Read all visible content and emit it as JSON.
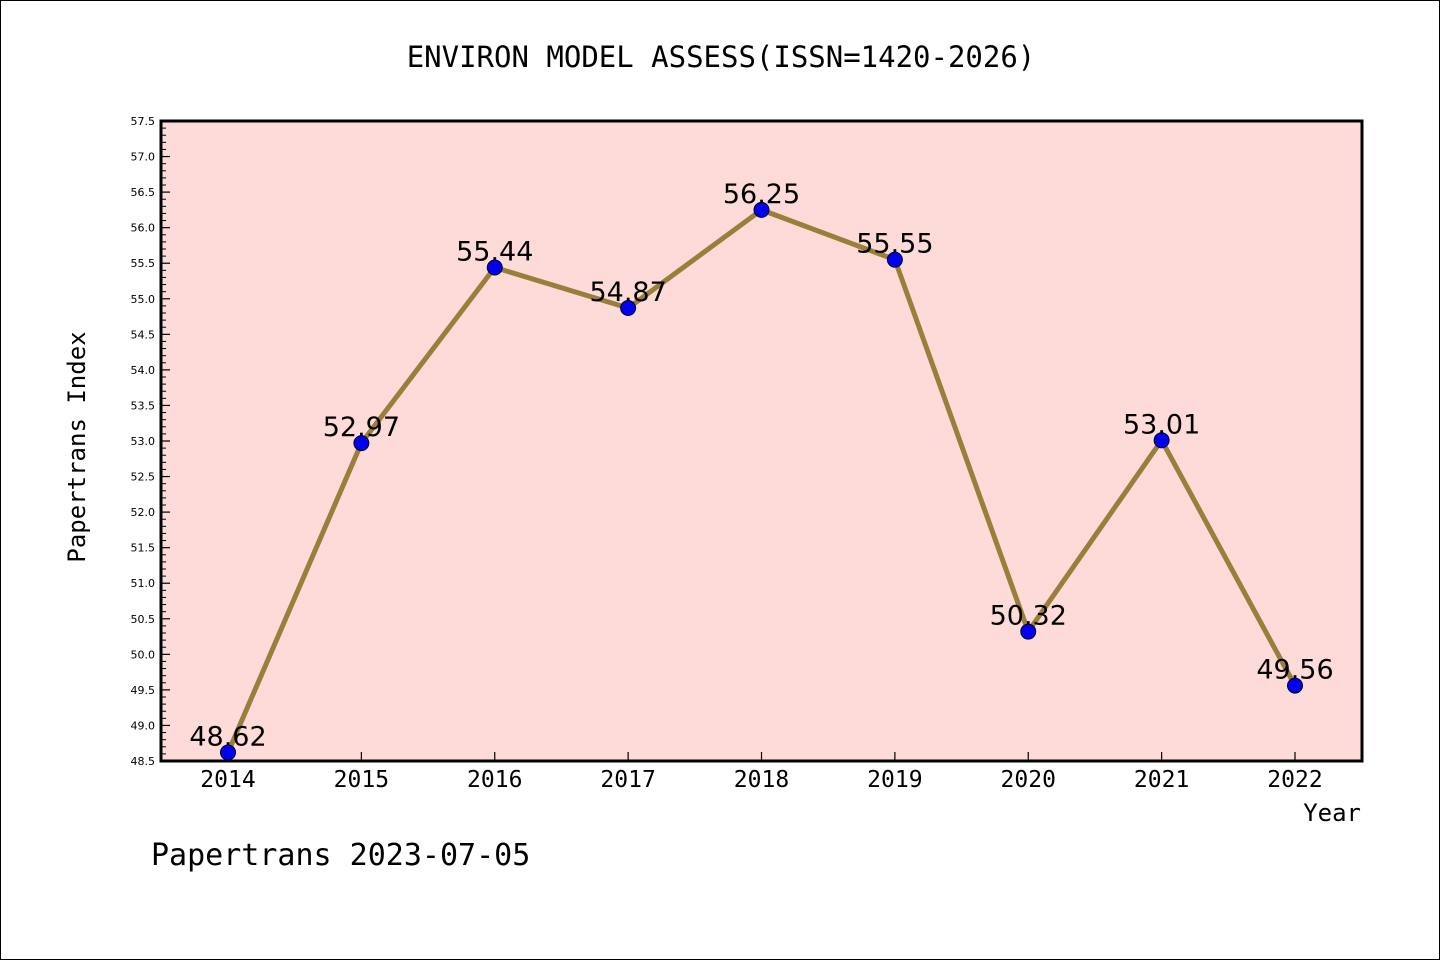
{
  "chart_data": {
    "type": "line",
    "title": "ENVIRON MODEL ASSESS(ISSN=1420-2026)",
    "xlabel": "Year",
    "ylabel": "Papertrans Index",
    "footer": "Papertrans 2023-07-05",
    "x": [
      "2014",
      "2015",
      "2016",
      "2017",
      "2018",
      "2019",
      "2020",
      "2021",
      "2022"
    ],
    "series": [
      {
        "values": [
          48.62,
          52.97,
          55.44,
          54.87,
          56.25,
          55.55,
          50.32,
          53.01,
          49.56
        ],
        "labels": [
          "48.62",
          "52.97",
          "55.44",
          "54.87",
          "56.25",
          "55.55",
          "50.32",
          "53.01",
          "49.56"
        ]
      }
    ],
    "ylim": [
      48.5,
      57.5
    ],
    "yticks": [
      "48.5",
      "49.0",
      "49.5",
      "50.0",
      "50.5",
      "51.0",
      "51.5",
      "52.0",
      "52.5",
      "53.0",
      "53.5",
      "54.0",
      "54.5",
      "55.0",
      "55.5",
      "56.0",
      "56.5",
      "57.0",
      "57.5"
    ],
    "grid": false,
    "colors": {
      "plot_background": "#fddbd8",
      "line": "#9a7f3a",
      "marker": "#0000ee",
      "axis": "#000000"
    }
  }
}
